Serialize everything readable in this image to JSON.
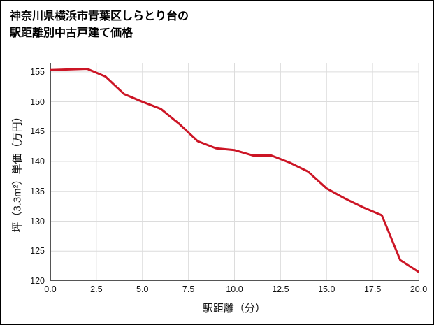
{
  "title": {
    "line1": "神奈川県横浜市青葉区しらとり台の",
    "line2": "駅距離別中古戸建て価格"
  },
  "chart_data": {
    "type": "line",
    "title": "神奈川県横浜市青葉区しらとり台の駅距離別中古戸建て価格",
    "xlabel": "駅距離（分）",
    "ylabel": "坪（3.3m²）単価（万円）",
    "x": [
      0,
      1,
      2,
      3,
      4,
      5,
      6,
      7,
      8,
      9,
      10,
      11,
      12,
      13,
      14,
      15,
      16,
      17,
      18,
      19,
      20
    ],
    "values": [
      155.3,
      155.4,
      155.5,
      154.2,
      151.3,
      150.0,
      148.8,
      146.3,
      143.4,
      142.2,
      141.9,
      141.0,
      141.0,
      139.8,
      138.3,
      135.5,
      133.8,
      132.3,
      131.0,
      123.5,
      121.5
    ],
    "xlim": [
      0,
      20
    ],
    "ylim": [
      120,
      156.5
    ],
    "x_ticks": [
      0,
      2.5,
      5,
      7.5,
      10,
      12.5,
      15,
      17.5,
      20
    ],
    "x_tick_labels": [
      "0.0",
      "2.5",
      "5.0",
      "7.5",
      "10.0",
      "12.5",
      "15.0",
      "17.5",
      "20.0"
    ],
    "y_ticks": [
      120,
      125,
      130,
      135,
      140,
      145,
      150,
      155
    ],
    "y_tick_labels": [
      "120",
      "125",
      "130",
      "135",
      "140",
      "145",
      "150",
      "155"
    ],
    "grid": true,
    "legend": null,
    "line_color": "#cc1525",
    "grid_color": "#dcdcdc",
    "axis_color": "#555555",
    "line_width": 3
  }
}
